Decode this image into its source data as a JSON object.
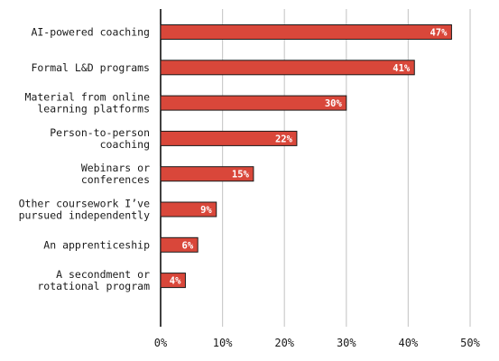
{
  "chart_data": {
    "type": "bar",
    "orientation": "horizontal",
    "categories": [
      [
        "AI-powered coaching"
      ],
      [
        "Formal L&D programs"
      ],
      [
        "Material from online",
        "learning platforms"
      ],
      [
        "Person-to-person",
        "coaching"
      ],
      [
        "Webinars or",
        "conferences"
      ],
      [
        "Other coursework I’ve",
        "pursued independently"
      ],
      [
        "An apprenticeship"
      ],
      [
        "A secondment or",
        "rotational program"
      ]
    ],
    "values": [
      47,
      41,
      30,
      22,
      15,
      9,
      6,
      4
    ],
    "data_labels": [
      "47%",
      "41%",
      "30%",
      "22%",
      "15%",
      "9%",
      "6%",
      "4%"
    ],
    "xlim": [
      0,
      50
    ],
    "x_ticks": [
      0,
      10,
      20,
      30,
      40,
      50
    ],
    "x_tick_labels": [
      "0%",
      "10%",
      "20%",
      "30%",
      "40%",
      "50%"
    ],
    "grid": "vertical",
    "colors": {
      "bar": "#d9473a",
      "bar_edge": "#1a1a1a",
      "grid": "#cccccc",
      "axis": "#000000"
    }
  }
}
